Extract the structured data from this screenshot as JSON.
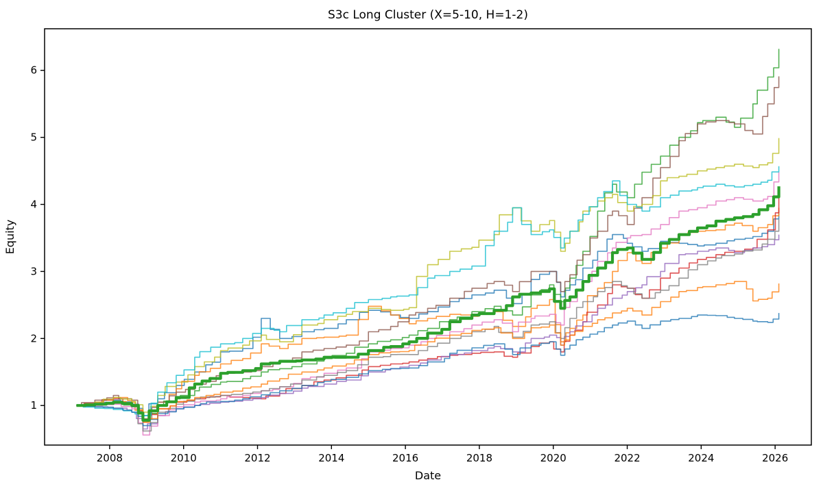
{
  "chart_data": {
    "type": "line",
    "title": "S3c Long Cluster (X=5-10, H=1-2)",
    "xlabel": "Date",
    "ylabel": "Equity",
    "xlim": [
      2006.24,
      2026.98
    ],
    "ylim": [
      0.41,
      6.62
    ],
    "x_ticks": [
      2008,
      2010,
      2012,
      2014,
      2016,
      2018,
      2020,
      2022,
      2024,
      2026
    ],
    "y_ticks": [
      1,
      2,
      3,
      4,
      5,
      6
    ],
    "grid": false,
    "legend": "none",
    "line_style": "stepped-equity-curves",
    "x": [
      2007.1,
      2007.6,
      2008.1,
      2008.6,
      2008.9,
      2009.3,
      2009.8,
      2010.3,
      2011.0,
      2011.6,
      2012.1,
      2012.6,
      2013.2,
      2013.8,
      2014.4,
      2015.0,
      2015.6,
      2016.1,
      2016.6,
      2017.2,
      2017.8,
      2018.4,
      2018.9,
      2019.4,
      2019.9,
      2020.2,
      2020.45,
      2020.8,
      2021.2,
      2021.6,
      2022.0,
      2022.4,
      2022.9,
      2023.4,
      2023.9,
      2024.4,
      2024.9,
      2025.4,
      2025.8,
      2026.1
    ],
    "series": [
      {
        "name": "member-blue-1",
        "color": "#1f77b4",
        "width": 1.6,
        "opacity": 0.8,
        "values": [
          1.0,
          1.03,
          1.08,
          1.02,
          0.85,
          1.1,
          1.3,
          1.5,
          1.8,
          1.85,
          2.3,
          2.0,
          2.1,
          2.15,
          2.28,
          2.42,
          2.35,
          2.3,
          2.4,
          2.55,
          2.65,
          2.72,
          2.52,
          2.88,
          3.0,
          2.62,
          2.8,
          3.05,
          3.3,
          3.55,
          3.42,
          3.3,
          3.45,
          3.42,
          3.38,
          3.42,
          3.48,
          3.52,
          3.6,
          3.91
        ]
      },
      {
        "name": "member-orange-1",
        "color": "#ff7f0e",
        "width": 1.6,
        "opacity": 0.8,
        "values": [
          1.0,
          1.05,
          1.12,
          1.05,
          0.8,
          1.05,
          1.25,
          1.45,
          1.62,
          1.7,
          1.92,
          1.85,
          2.0,
          2.02,
          2.05,
          2.48,
          2.35,
          2.22,
          2.3,
          2.36,
          2.33,
          2.4,
          2.18,
          2.45,
          2.58,
          1.95,
          2.15,
          2.35,
          2.75,
          3.0,
          3.28,
          3.12,
          3.35,
          3.55,
          3.6,
          3.62,
          3.72,
          3.6,
          3.7,
          3.95
        ]
      },
      {
        "name": "member-green",
        "color": "#2ca02c",
        "width": 1.6,
        "opacity": 0.8,
        "values": [
          1.0,
          1.01,
          1.03,
          0.98,
          0.8,
          1.0,
          1.1,
          1.22,
          1.35,
          1.4,
          1.5,
          1.55,
          1.62,
          1.7,
          1.78,
          1.92,
          1.98,
          2.05,
          2.15,
          2.28,
          2.4,
          2.48,
          2.35,
          2.65,
          2.8,
          2.55,
          2.9,
          3.3,
          3.9,
          4.3,
          4.1,
          4.48,
          4.72,
          5.0,
          5.22,
          5.3,
          5.15,
          5.5,
          5.9,
          6.32
        ]
      },
      {
        "name": "member-red",
        "color": "#d62728",
        "width": 1.6,
        "opacity": 0.8,
        "values": [
          1.0,
          1.05,
          1.1,
          1.0,
          0.75,
          0.95,
          1.05,
          1.1,
          1.15,
          1.12,
          1.1,
          1.18,
          1.3,
          1.38,
          1.45,
          1.58,
          1.62,
          1.65,
          1.7,
          1.75,
          1.78,
          1.8,
          1.72,
          1.88,
          1.95,
          1.8,
          2.05,
          2.25,
          2.5,
          2.8,
          2.75,
          2.6,
          2.9,
          3.05,
          3.18,
          3.25,
          3.3,
          3.35,
          3.62,
          4.16
        ]
      },
      {
        "name": "member-purple",
        "color": "#9467bd",
        "width": 1.6,
        "opacity": 0.8,
        "values": [
          1.0,
          0.98,
          0.96,
          0.9,
          0.65,
          0.85,
          0.95,
          1.0,
          1.05,
          1.08,
          1.12,
          1.18,
          1.26,
          1.32,
          1.38,
          1.5,
          1.55,
          1.6,
          1.68,
          1.76,
          1.82,
          1.88,
          1.8,
          2.0,
          2.05,
          1.9,
          2.1,
          2.25,
          2.45,
          2.6,
          2.7,
          2.8,
          3.0,
          3.25,
          3.3,
          3.35,
          3.28,
          3.35,
          3.4,
          3.55
        ]
      },
      {
        "name": "member-brown",
        "color": "#8c564b",
        "width": 1.6,
        "opacity": 0.8,
        "values": [
          1.0,
          1.08,
          1.15,
          1.08,
          0.8,
          1.05,
          1.2,
          1.32,
          1.48,
          1.5,
          1.58,
          1.65,
          1.8,
          1.85,
          1.9,
          2.1,
          2.18,
          2.35,
          2.45,
          2.6,
          2.75,
          2.85,
          2.7,
          3.0,
          3.0,
          2.7,
          2.95,
          3.25,
          3.6,
          3.9,
          3.7,
          4.1,
          4.55,
          4.95,
          5.2,
          5.25,
          5.2,
          5.05,
          5.5,
          5.91
        ]
      },
      {
        "name": "member-pink",
        "color": "#e377c2",
        "width": 1.6,
        "opacity": 0.8,
        "values": [
          1.0,
          1.0,
          1.02,
          0.95,
          0.56,
          0.85,
          0.98,
          1.05,
          1.1,
          1.15,
          1.22,
          1.28,
          1.4,
          1.48,
          1.56,
          1.8,
          1.85,
          1.9,
          2.0,
          2.1,
          2.2,
          2.28,
          2.1,
          2.3,
          2.36,
          2.2,
          2.55,
          2.85,
          3.15,
          3.35,
          3.5,
          3.55,
          3.7,
          3.9,
          3.95,
          4.05,
          4.1,
          4.05,
          4.12,
          4.48
        ]
      },
      {
        "name": "member-gray",
        "color": "#7f7f7f",
        "width": 1.6,
        "opacity": 0.8,
        "values": [
          1.0,
          1.02,
          1.05,
          0.98,
          0.62,
          0.9,
          1.02,
          1.1,
          1.15,
          1.18,
          1.22,
          1.28,
          1.38,
          1.45,
          1.52,
          1.72,
          1.76,
          1.76,
          1.88,
          2.0,
          2.1,
          2.18,
          2.02,
          2.2,
          2.25,
          2.0,
          2.3,
          2.55,
          2.7,
          2.85,
          2.75,
          2.6,
          2.72,
          2.9,
          3.1,
          3.2,
          3.26,
          3.32,
          3.48,
          3.78
        ]
      },
      {
        "name": "member-olive",
        "color": "#bcbd22",
        "width": 1.6,
        "opacity": 0.8,
        "values": [
          1.0,
          1.05,
          1.12,
          1.06,
          0.9,
          1.15,
          1.35,
          1.58,
          1.82,
          1.9,
          2.05,
          1.95,
          2.2,
          2.28,
          2.36,
          2.45,
          2.42,
          2.46,
          3.1,
          3.3,
          3.36,
          3.55,
          3.95,
          3.6,
          3.76,
          3.3,
          3.6,
          3.9,
          4.05,
          4.15,
          3.9,
          4.0,
          4.35,
          4.42,
          4.5,
          4.55,
          4.6,
          4.55,
          4.62,
          4.99
        ]
      },
      {
        "name": "member-cyan",
        "color": "#17becf",
        "width": 1.6,
        "opacity": 0.8,
        "values": [
          1.0,
          0.96,
          0.94,
          0.9,
          0.85,
          1.2,
          1.45,
          1.72,
          1.92,
          2.0,
          2.15,
          2.1,
          2.28,
          2.35,
          2.45,
          2.58,
          2.62,
          2.65,
          2.9,
          3.0,
          3.08,
          3.6,
          3.95,
          3.55,
          3.62,
          3.35,
          3.6,
          3.85,
          4.1,
          4.35,
          4.0,
          3.9,
          4.1,
          4.2,
          4.25,
          4.3,
          4.26,
          4.3,
          4.36,
          4.57
        ]
      },
      {
        "name": "member-blue-2",
        "color": "#1f77b4",
        "width": 1.6,
        "opacity": 0.8,
        "values": [
          1.0,
          0.98,
          0.96,
          0.9,
          0.7,
          0.88,
          0.95,
          1.0,
          1.06,
          1.1,
          1.16,
          1.22,
          1.3,
          1.36,
          1.42,
          1.52,
          1.55,
          1.56,
          1.65,
          1.78,
          1.86,
          1.92,
          1.76,
          1.9,
          1.95,
          1.75,
          1.9,
          2.02,
          2.1,
          2.2,
          2.26,
          2.15,
          2.26,
          2.3,
          2.35,
          2.34,
          2.3,
          2.26,
          2.24,
          2.38
        ]
      },
      {
        "name": "member-orange-2",
        "color": "#ff7f0e",
        "width": 1.6,
        "opacity": 0.8,
        "values": [
          1.0,
          1.02,
          1.06,
          1.0,
          0.75,
          0.95,
          1.06,
          1.12,
          1.2,
          1.26,
          1.32,
          1.4,
          1.5,
          1.56,
          1.62,
          1.76,
          1.8,
          1.82,
          1.95,
          2.05,
          2.12,
          2.16,
          2.0,
          2.16,
          2.2,
          1.9,
          2.05,
          2.18,
          2.28,
          2.38,
          2.45,
          2.35,
          2.55,
          2.7,
          2.76,
          2.8,
          2.85,
          2.56,
          2.6,
          2.82
        ]
      },
      {
        "name": "cluster-mean",
        "color": "#2ca02c",
        "width": 4.2,
        "opacity": 1.0,
        "values": [
          1.0,
          1.02,
          1.05,
          1.0,
          0.78,
          1.0,
          1.12,
          1.32,
          1.48,
          1.52,
          1.62,
          1.66,
          1.68,
          1.72,
          1.72,
          1.82,
          1.88,
          1.95,
          2.08,
          2.25,
          2.35,
          2.42,
          2.62,
          2.68,
          2.74,
          2.45,
          2.62,
          2.85,
          3.05,
          3.28,
          3.35,
          3.18,
          3.42,
          3.55,
          3.65,
          3.75,
          3.8,
          3.85,
          3.98,
          4.27
        ]
      }
    ]
  }
}
